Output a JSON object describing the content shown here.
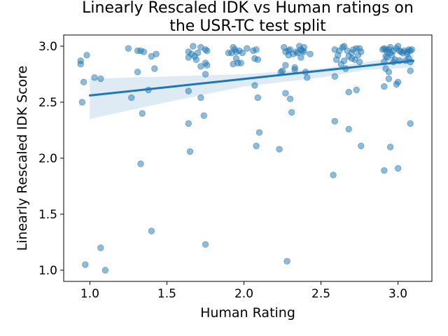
{
  "chart_data": {
    "type": "scatter",
    "title_lines": [
      "Linearly Rescaled IDK vs Human ratings on",
      "the USR-TC test split"
    ],
    "xlabel": "Human Rating",
    "ylabel": "Linearly Rescaled IDK Score",
    "xlim": [
      0.83,
      3.22
    ],
    "ylim": [
      0.9,
      3.1
    ],
    "xticks": [
      1.0,
      1.5,
      2.0,
      2.5,
      3.0
    ],
    "xtick_labels": [
      "1.0",
      "1.5",
      "2.0",
      "2.5",
      "3.0"
    ],
    "yticks": [
      1.0,
      1.5,
      2.0,
      2.5,
      3.0
    ],
    "ytick_labels": [
      "1.0",
      "1.5",
      "2.0",
      "2.5",
      "3.0"
    ],
    "grid": false,
    "point_color": "#1f77b4",
    "regression": {
      "x": [
        1.0,
        3.1
      ],
      "y": [
        2.56,
        2.87
      ],
      "ci_upper": [
        [
          1.0,
          2.71
        ],
        [
          1.5,
          2.73
        ],
        [
          2.0,
          2.75
        ],
        [
          2.5,
          2.8
        ],
        [
          2.8,
          2.86
        ],
        [
          3.1,
          2.93
        ]
      ],
      "ci_lower": [
        [
          3.1,
          2.81
        ],
        [
          2.8,
          2.79
        ],
        [
          2.5,
          2.72
        ],
        [
          2.0,
          2.64
        ],
        [
          1.5,
          2.5
        ],
        [
          1.0,
          2.35
        ]
      ]
    },
    "points": [
      [
        0.94,
        2.87
      ],
      [
        0.94,
        2.84
      ],
      [
        0.95,
        2.5
      ],
      [
        0.96,
        2.68
      ],
      [
        0.98,
        2.92
      ],
      [
        0.97,
        1.05
      ],
      [
        1.03,
        2.72
      ],
      [
        1.07,
        2.71
      ],
      [
        1.07,
        1.2
      ],
      [
        1.1,
        1.0
      ],
      [
        1.25,
        2.98
      ],
      [
        1.27,
        2.54
      ],
      [
        1.31,
        2.96
      ],
      [
        1.31,
        2.77
      ],
      [
        1.33,
        2.96
      ],
      [
        1.35,
        2.95
      ],
      [
        1.34,
        2.4
      ],
      [
        1.33,
        1.95
      ],
      [
        1.38,
        2.61
      ],
      [
        1.4,
        2.91
      ],
      [
        1.43,
        2.93
      ],
      [
        1.42,
        2.8
      ],
      [
        1.4,
        1.35
      ],
      [
        1.64,
        2.95
      ],
      [
        1.64,
        2.9
      ],
      [
        1.64,
        2.6
      ],
      [
        1.64,
        2.31
      ],
      [
        1.65,
        2.06
      ],
      [
        1.67,
        3.0
      ],
      [
        1.66,
        2.93
      ],
      [
        1.68,
        2.91
      ],
      [
        1.69,
        2.88
      ],
      [
        1.7,
        2.94
      ],
      [
        1.72,
        2.99
      ],
      [
        1.72,
        2.82
      ],
      [
        1.72,
        2.54
      ],
      [
        1.74,
        2.38
      ],
      [
        1.75,
        2.97
      ],
      [
        1.76,
        2.96
      ],
      [
        1.75,
        2.85
      ],
      [
        1.76,
        2.83
      ],
      [
        1.75,
        2.75
      ],
      [
        1.75,
        1.23
      ],
      [
        1.9,
        2.94
      ],
      [
        1.92,
        2.94
      ],
      [
        1.93,
        2.99
      ],
      [
        1.93,
        2.84
      ],
      [
        1.94,
        2.97
      ],
      [
        1.95,
        2.95
      ],
      [
        1.95,
        2.89
      ],
      [
        1.96,
        2.85
      ],
      [
        1.97,
        2.96
      ],
      [
        1.98,
        2.85
      ],
      [
        1.99,
        2.94
      ],
      [
        2.02,
        2.98
      ],
      [
        2.06,
        2.96
      ],
      [
        2.07,
        2.89
      ],
      [
        2.07,
        2.65
      ],
      [
        2.08,
        2.97
      ],
      [
        2.08,
        2.11
      ],
      [
        2.09,
        2.88
      ],
      [
        2.09,
        2.54
      ],
      [
        2.1,
        2.23
      ],
      [
        2.23,
        2.08
      ],
      [
        2.24,
        2.77
      ],
      [
        2.25,
        2.78
      ],
      [
        2.26,
        2.99
      ],
      [
        2.27,
        2.95
      ],
      [
        2.27,
        2.83
      ],
      [
        2.27,
        2.58
      ],
      [
        2.28,
        1.08
      ],
      [
        2.29,
        2.96
      ],
      [
        2.29,
        2.92
      ],
      [
        2.3,
        2.97
      ],
      [
        2.3,
        2.53
      ],
      [
        2.31,
        2.41
      ],
      [
        2.32,
        2.93
      ],
      [
        2.33,
        2.81
      ],
      [
        2.33,
        2.79
      ],
      [
        2.34,
        2.95
      ],
      [
        2.35,
        2.94
      ],
      [
        2.36,
        3.0
      ],
      [
        2.37,
        2.97
      ],
      [
        2.37,
        2.9
      ],
      [
        2.38,
        2.96
      ],
      [
        2.39,
        2.99
      ],
      [
        2.39,
        2.95
      ],
      [
        2.4,
        2.77
      ],
      [
        2.41,
        2.72
      ],
      [
        2.43,
        2.93
      ],
      [
        2.58,
        1.85
      ],
      [
        2.59,
        2.97
      ],
      [
        2.59,
        2.73
      ],
      [
        2.59,
        2.33
      ],
      [
        2.6,
        2.88
      ],
      [
        2.61,
        2.92
      ],
      [
        2.62,
        2.96
      ],
      [
        2.63,
        2.84
      ],
      [
        2.64,
        2.99
      ],
      [
        2.65,
        3.0
      ],
      [
        2.65,
        2.87
      ],
      [
        2.66,
        2.8
      ],
      [
        2.67,
        2.96
      ],
      [
        2.68,
        2.91
      ],
      [
        2.68,
        2.59
      ],
      [
        2.68,
        2.26
      ],
      [
        2.7,
        2.94
      ],
      [
        2.7,
        2.89
      ],
      [
        2.71,
        2.97
      ],
      [
        2.72,
        2.88
      ],
      [
        2.73,
        2.98
      ],
      [
        2.73,
        2.61
      ],
      [
        2.74,
        2.92
      ],
      [
        2.75,
        2.98
      ],
      [
        2.75,
        2.86
      ],
      [
        2.76,
        2.95
      ],
      [
        2.76,
        2.11
      ],
      [
        2.9,
        2.97
      ],
      [
        2.91,
        2.98
      ],
      [
        2.91,
        2.86
      ],
      [
        2.91,
        2.64
      ],
      [
        2.91,
        1.89
      ],
      [
        2.92,
        2.97
      ],
      [
        2.92,
        2.91
      ],
      [
        2.92,
        2.8
      ],
      [
        2.93,
        2.95
      ],
      [
        2.93,
        2.9
      ],
      [
        2.94,
        2.97
      ],
      [
        2.94,
        2.71
      ],
      [
        2.94,
        2.77
      ],
      [
        2.95,
        2.99
      ],
      [
        2.95,
        2.94
      ],
      [
        2.95,
        2.1
      ],
      [
        2.96,
        2.92
      ],
      [
        2.97,
        2.96
      ],
      [
        2.97,
        2.86
      ],
      [
        2.98,
        2.88
      ],
      [
        2.99,
        2.98
      ],
      [
        2.99,
        2.66
      ],
      [
        3.0,
        3.0
      ],
      [
        3.0,
        2.68
      ],
      [
        3.0,
        1.91
      ],
      [
        3.01,
        2.96
      ],
      [
        3.01,
        2.87
      ],
      [
        3.02,
        2.95
      ],
      [
        3.03,
        2.94
      ],
      [
        3.04,
        2.96
      ],
      [
        3.05,
        2.87
      ],
      [
        3.06,
        2.95
      ],
      [
        3.06,
        2.93
      ],
      [
        3.07,
        2.89
      ],
      [
        3.07,
        2.97
      ],
      [
        3.08,
        2.96
      ],
      [
        3.08,
        2.78
      ],
      [
        3.08,
        2.31
      ],
      [
        3.08,
        2.86
      ],
      [
        3.09,
        2.97
      ]
    ]
  }
}
